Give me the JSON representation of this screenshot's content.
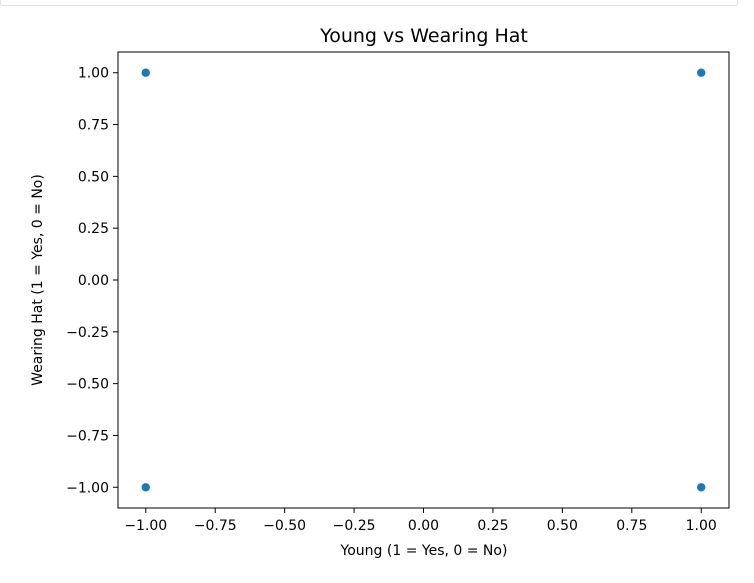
{
  "chart_data": {
    "type": "scatter",
    "title": "Young vs Wearing Hat",
    "xlabel": "Young (1 = Yes, 0 = No)",
    "ylabel": "Wearing Hat (1 = Yes, 0 = No)",
    "xlim": [
      -1.1,
      1.1
    ],
    "ylim": [
      -1.1,
      1.1
    ],
    "xticks": [
      -1.0,
      -0.75,
      -0.5,
      -0.25,
      0.0,
      0.25,
      0.5,
      0.75,
      1.0
    ],
    "yticks": [
      -1.0,
      -0.75,
      -0.5,
      -0.25,
      0.0,
      0.25,
      0.5,
      0.75,
      1.0
    ],
    "xtick_labels": [
      "−1.00",
      "−0.75",
      "−0.50",
      "−0.25",
      "0.00",
      "0.25",
      "0.50",
      "0.75",
      "1.00"
    ],
    "ytick_labels": [
      "−1.00",
      "−0.75",
      "−0.50",
      "−0.25",
      "0.00",
      "0.25",
      "0.50",
      "0.75",
      "1.00"
    ],
    "grid": false,
    "series": [
      {
        "color": "#1f77b4",
        "points": [
          {
            "x": -1,
            "y": 1
          },
          {
            "x": 1,
            "y": 1
          },
          {
            "x": -1,
            "y": -1
          },
          {
            "x": 1,
            "y": -1
          }
        ]
      }
    ]
  }
}
